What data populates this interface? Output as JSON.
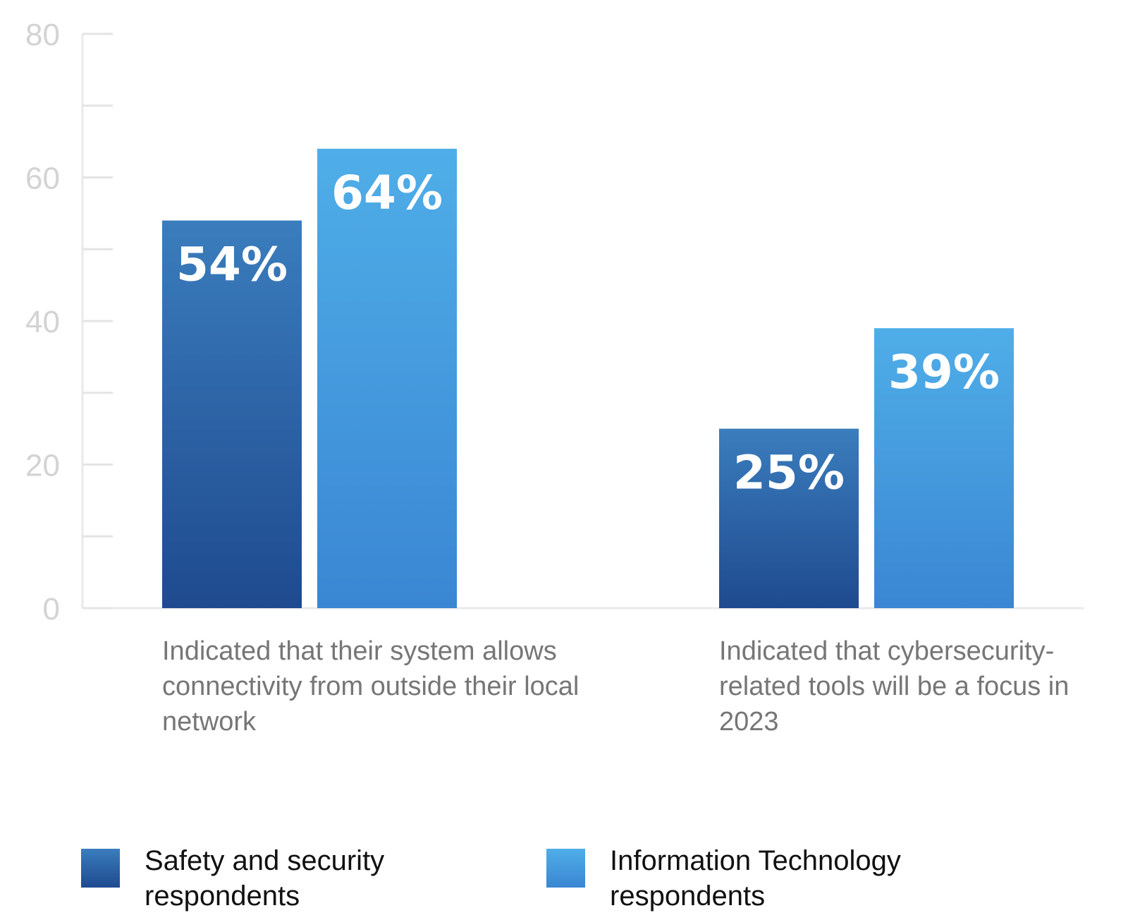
{
  "chart_data": {
    "type": "bar",
    "categories": [
      "Indicated that their system allows connectivity from outside their local network",
      "Indicated that cybersecurity-related tools will be a focus in 2023"
    ],
    "series": [
      {
        "name": "Safety and security respondents",
        "values": [
          54,
          25
        ],
        "labels": [
          "54%",
          "25%"
        ],
        "color_top": "#3a7dbd",
        "color_bottom": "#1f4a8f"
      },
      {
        "name": "Information Technology respondents",
        "values": [
          64,
          39
        ],
        "labels": [
          "64%",
          "39%"
        ],
        "color_top": "#4faee8",
        "color_bottom": "#3a86d3"
      }
    ],
    "ylim": [
      0,
      80
    ],
    "yticks": [
      0,
      20,
      40,
      60,
      80
    ],
    "xlabel": "",
    "ylabel": "",
    "title": "",
    "grid": false,
    "legend": "bottom"
  },
  "legend": {
    "item1": "Safety and security respondents",
    "item2": "Information Technology respondents"
  },
  "category_labels": {
    "first": "Indicated that their system allows connectivity from outside their local network",
    "second": "Indicated that cybersecurity-related tools will be a focus in 2023"
  }
}
